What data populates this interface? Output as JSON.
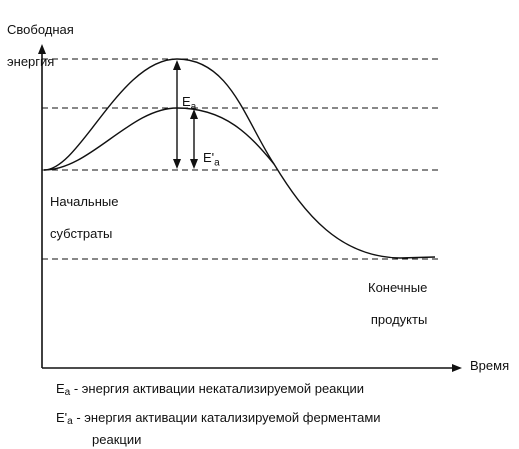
{
  "axes": {
    "y_label_line1": "Свободная",
    "y_label_line2": "энергия",
    "x_label": "Время"
  },
  "labels": {
    "ea_main": "E",
    "ea_sub": "a",
    "eap_main": "E'",
    "eap_sub": "a",
    "start_line1": "Начальные",
    "start_line2": "субстраты",
    "end_line1": "Конечные",
    "end_line2": "продукты"
  },
  "legend": [
    {
      "symbol": "E",
      "sub": "a",
      "text": " - энергия активации некатализируемой реакции",
      "text2": ""
    },
    {
      "symbol": "E'",
      "sub": "a",
      "text": " - энергия активации катализируемой ферментами",
      "text2": "реакции"
    }
  ]
}
